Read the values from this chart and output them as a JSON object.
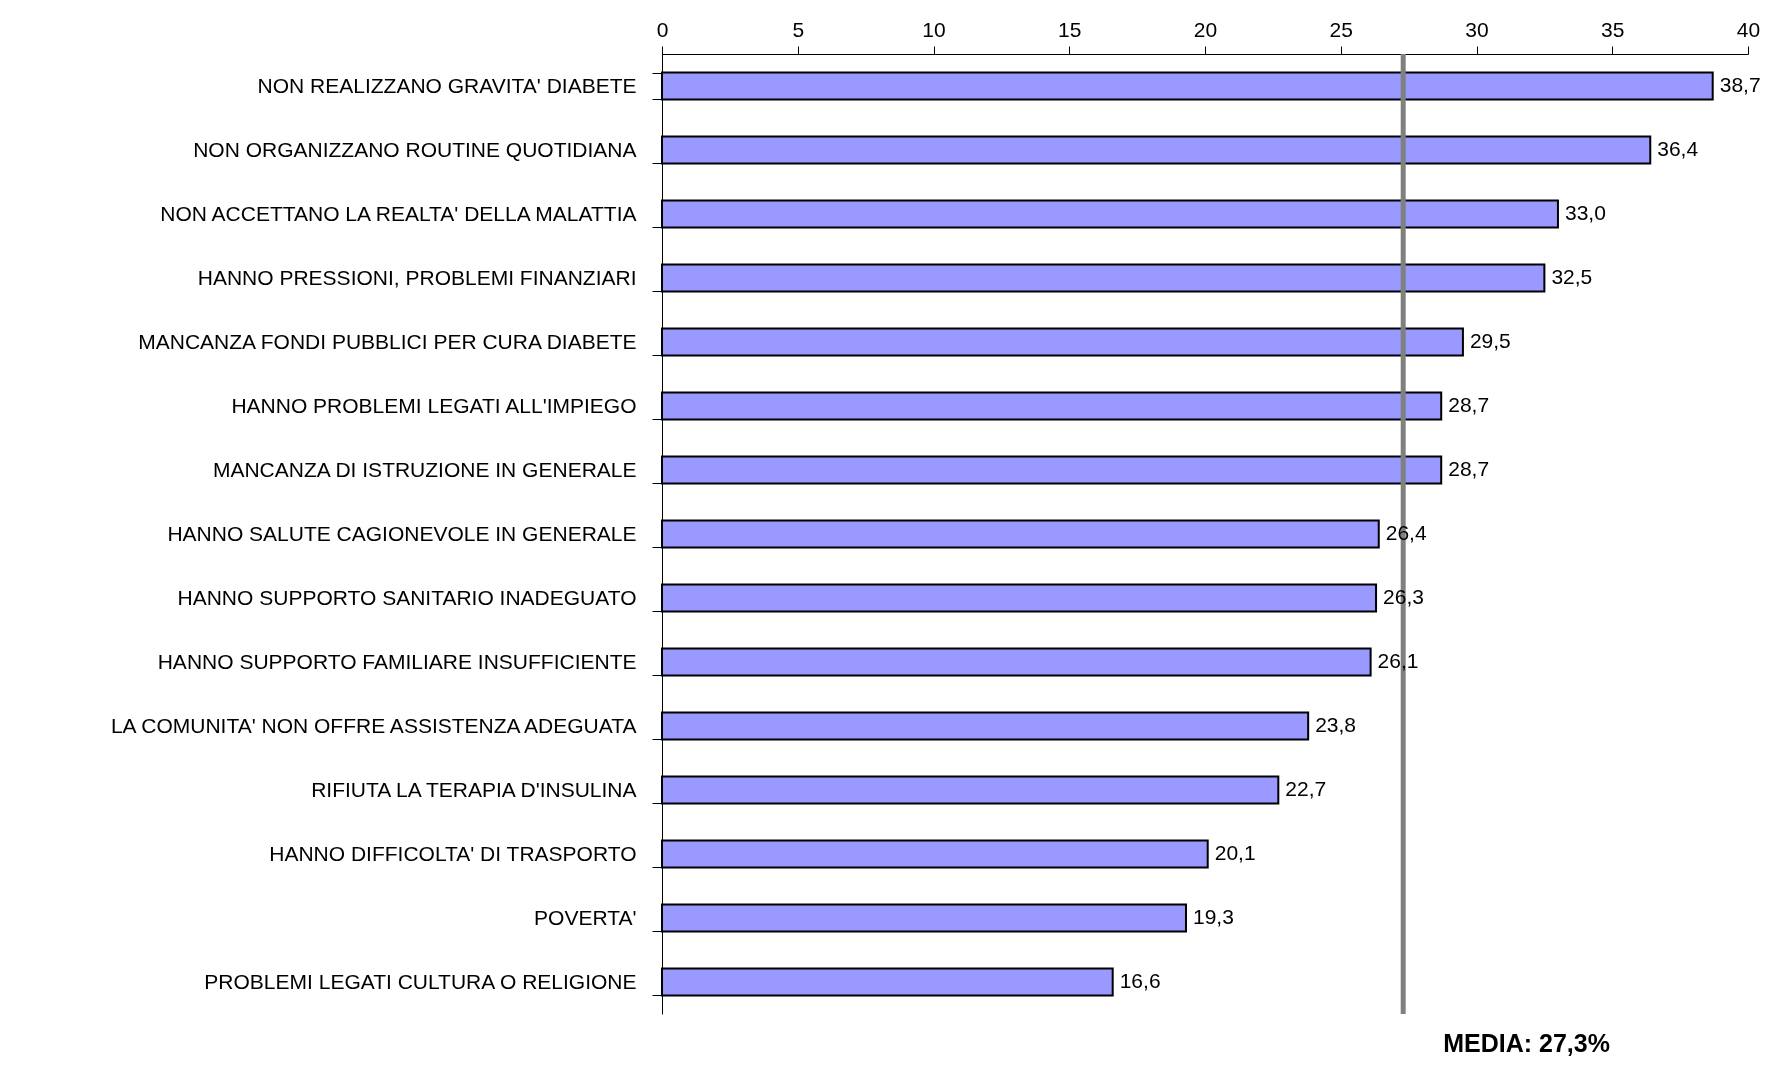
{
  "chart_data": {
    "type": "bar",
    "orientation": "horizontal",
    "categories": [
      "NON REALIZZANO GRAVITA' DIABETE",
      "NON ORGANIZZANO ROUTINE QUOTIDIANA",
      "NON ACCETTANO LA REALTA' DELLA MALATTIA",
      "HANNO PRESSIONI, PROBLEMI FINANZIARI",
      "MANCANZA FONDI PUBBLICI PER CURA DIABETE",
      "HANNO PROBLEMI LEGATI ALL'IMPIEGO",
      "MANCANZA DI ISTRUZIONE IN GENERALE",
      "HANNO SALUTE CAGIONEVOLE IN GENERALE",
      "HANNO SUPPORTO SANITARIO INADEGUATO",
      "HANNO SUPPORTO FAMILIARE INSUFFICIENTE",
      "LA COMUNITA' NON OFFRE ASSISTENZA ADEGUATA",
      "RIFIUTA LA TERAPIA D'INSULINA",
      "HANNO DIFFICOLTA' DI TRASPORTO",
      "POVERTA'",
      "PROBLEMI LEGATI CULTURA O RELIGIONE"
    ],
    "values": [
      38.7,
      36.4,
      33.0,
      32.5,
      29.5,
      28.7,
      28.7,
      26.4,
      26.3,
      26.1,
      23.8,
      22.7,
      20.1,
      19.3,
      16.6
    ],
    "value_labels": [
      "38,7",
      "36,4",
      "33,0",
      "32,5",
      "29,5",
      "28,7",
      "28,7",
      "26,4",
      "26,3",
      "26,1",
      "23,8",
      "22,7",
      "20,1",
      "19,3",
      "16,6"
    ],
    "color": "#9999ff",
    "xlim": [
      0,
      40
    ],
    "xticks": [
      0,
      5,
      10,
      15,
      20,
      25,
      30,
      35,
      40
    ],
    "ref_lines": [
      {
        "axis": "x",
        "value": 27.3,
        "label": "MEDIA: 27,3%",
        "color": "#808080"
      }
    ],
    "grid": false
  }
}
